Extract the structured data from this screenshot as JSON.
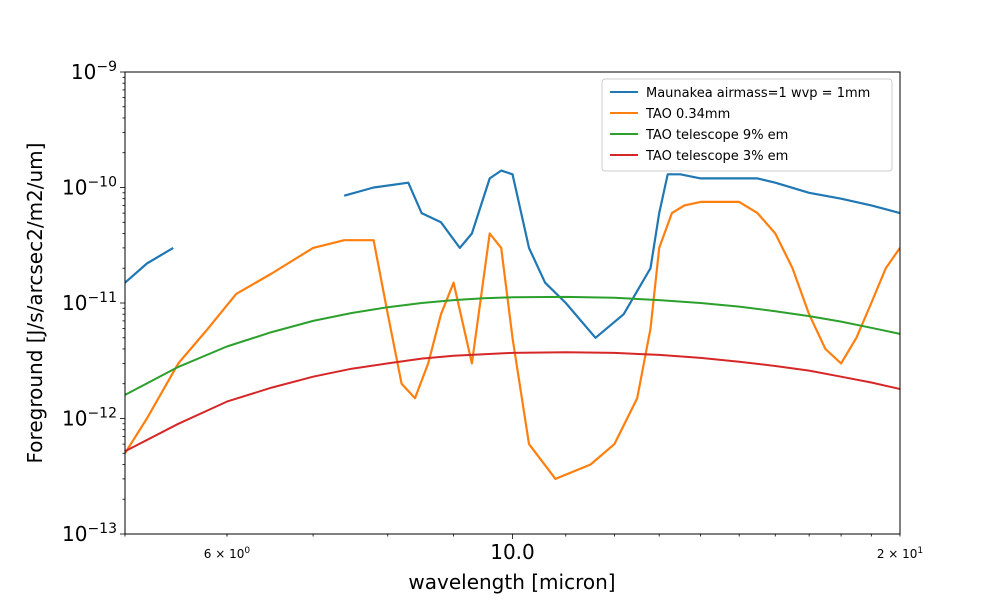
{
  "chart_data": {
    "type": "line",
    "title": "",
    "xlabel": "wavelength [micron]",
    "ylabel": "Foreground [J/s/arcsec2/m2/um]",
    "xscale": "log",
    "yscale": "log",
    "xlim": [
      5,
      20
    ],
    "ylim": [
      1e-13,
      1e-09
    ],
    "grid": false,
    "legend_position": "top-right",
    "x_ticks": [
      {
        "value": 6,
        "label_base": "6 × 10",
        "label_exp": "0",
        "minor": true
      },
      {
        "value": 10,
        "label": "10.0",
        "minor": false
      },
      {
        "value": 20,
        "label_base": "2 × 10",
        "label_exp": "1",
        "minor": true
      }
    ],
    "y_ticks": [
      {
        "value": 1e-13,
        "label_base": "10",
        "label_exp": "−13"
      },
      {
        "value": 1e-12,
        "label_base": "10",
        "label_exp": "−12"
      },
      {
        "value": 1e-11,
        "label_base": "10",
        "label_exp": "−11"
      },
      {
        "value": 1e-10,
        "label_base": "10",
        "label_exp": "−10"
      },
      {
        "value": 1e-09,
        "label_base": "10",
        "label_exp": "−9"
      }
    ],
    "series": [
      {
        "name": "Maunakea airmass=1 wvp = 1mm",
        "color": "#1f77b4",
        "x": [
          5.0,
          5.2,
          5.45,
          5.46,
          7.4,
          7.8,
          8.3,
          8.5,
          8.8,
          9.1,
          9.3,
          9.6,
          9.8,
          10.0,
          10.3,
          10.6,
          11.0,
          11.6,
          12.2,
          12.8,
          13.0,
          13.2,
          13.5,
          14.0,
          14.3,
          15.0,
          15.5,
          16.0,
          17.0,
          18.0,
          19.0,
          20.0
        ],
        "y": [
          1.5e-11,
          2.2e-11,
          3e-11,
          null,
          8.5e-11,
          1e-10,
          1.1e-10,
          6e-11,
          5e-11,
          3e-11,
          4e-11,
          1.2e-10,
          1.4e-10,
          1.3e-10,
          3e-11,
          1.5e-11,
          1e-11,
          5e-12,
          8e-12,
          2e-11,
          6e-11,
          1.3e-10,
          1.3e-10,
          1.2e-10,
          1.2e-10,
          1.2e-10,
          1.2e-10,
          1.1e-10,
          9e-11,
          8e-11,
          7e-11,
          6e-11
        ]
      },
      {
        "name": "TAO 0.34mm",
        "color": "#ff7f0e",
        "x": [
          5.0,
          5.2,
          5.5,
          5.8,
          6.1,
          6.5,
          7.0,
          7.4,
          7.8,
          8.0,
          8.2,
          8.4,
          8.6,
          8.8,
          9.0,
          9.3,
          9.6,
          9.8,
          10.0,
          10.3,
          10.8,
          11.5,
          12.0,
          12.5,
          12.8,
          13.0,
          13.3,
          13.6,
          14.0,
          14.5,
          15.0,
          15.5,
          16.0,
          16.5,
          17.0,
          17.5,
          18.0,
          18.5,
          19.0,
          19.5,
          20.0
        ],
        "y": [
          5e-13,
          1e-12,
          3e-12,
          6e-12,
          1.2e-11,
          1.8e-11,
          3e-11,
          3.5e-11,
          3.5e-11,
          8e-12,
          2e-12,
          1.5e-12,
          3e-12,
          8e-12,
          1.5e-11,
          3e-12,
          4e-11,
          3e-11,
          5e-12,
          6e-13,
          3e-13,
          4e-13,
          6e-13,
          1.5e-12,
          6e-12,
          3e-11,
          6e-11,
          7e-11,
          7.5e-11,
          7.5e-11,
          7.5e-11,
          6e-11,
          4e-11,
          2e-11,
          8e-12,
          4e-12,
          3e-12,
          5e-12,
          1e-11,
          2e-11,
          3e-11
        ]
      },
      {
        "name": "TAO telescope 9% em",
        "color": "#2ca02c",
        "x": [
          5.0,
          5.5,
          6.0,
          6.5,
          7.0,
          7.5,
          8.0,
          8.5,
          9.0,
          9.5,
          10.0,
          11.0,
          12.0,
          13.0,
          14.0,
          15.0,
          16.0,
          17.0,
          18.0,
          19.0,
          20.0
        ],
        "y": [
          1.6e-12,
          2.8e-12,
          4.2e-12,
          5.6e-12,
          7e-12,
          8.2e-12,
          9.2e-12,
          1e-11,
          1.06e-11,
          1.1e-11,
          1.12e-11,
          1.13e-11,
          1.11e-11,
          1.06e-11,
          1e-11,
          9.3e-12,
          8.5e-12,
          7.7e-12,
          6.9e-12,
          6.1e-12,
          5.4e-12
        ]
      },
      {
        "name": "TAO telescope 3% em",
        "color": "#d62728",
        "x": [
          5.0,
          5.5,
          6.0,
          6.5,
          7.0,
          7.5,
          8.0,
          8.5,
          9.0,
          9.5,
          10.0,
          11.0,
          12.0,
          13.0,
          14.0,
          15.0,
          16.0,
          17.0,
          18.0,
          19.0,
          20.0
        ],
        "y": [
          5.2e-13,
          9e-13,
          1.4e-12,
          1.85e-12,
          2.3e-12,
          2.7e-12,
          3e-12,
          3.3e-12,
          3.5e-12,
          3.6e-12,
          3.7e-12,
          3.75e-12,
          3.7e-12,
          3.55e-12,
          3.35e-12,
          3.1e-12,
          2.85e-12,
          2.6e-12,
          2.3e-12,
          2.05e-12,
          1.8e-12
        ]
      }
    ]
  }
}
